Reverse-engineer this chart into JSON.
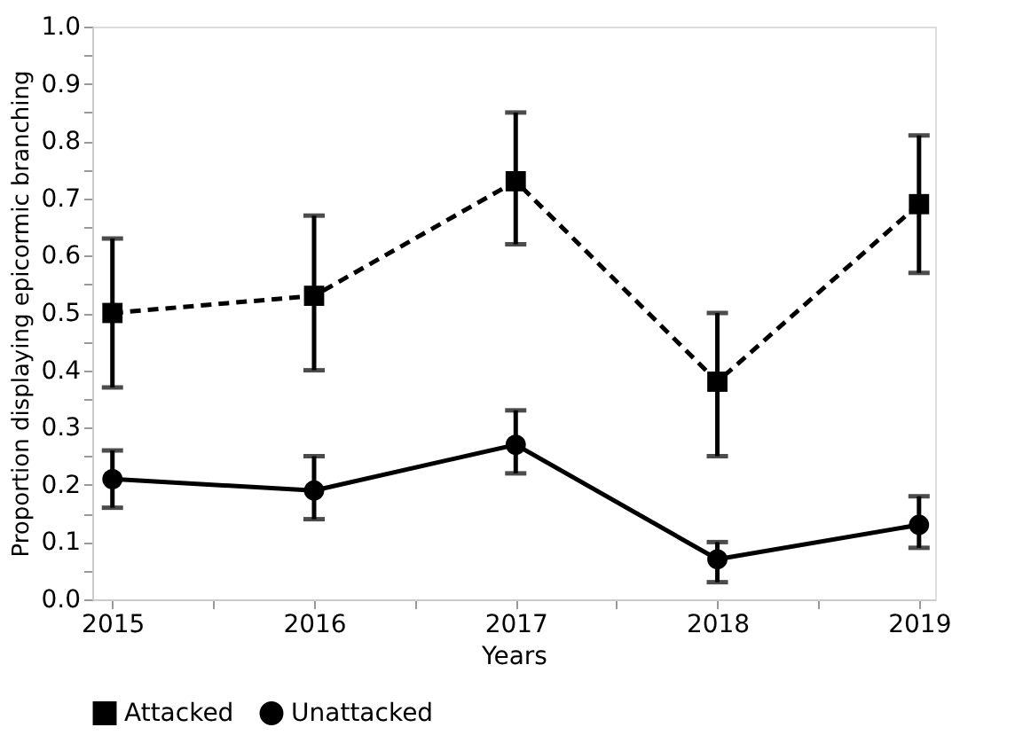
{
  "chart_data": {
    "type": "line",
    "xlabel": "Years",
    "ylabel": "Proportion displaying epicormic branching",
    "x": [
      2015,
      2016,
      2017,
      2018,
      2019
    ],
    "series": [
      {
        "name": "Attacked",
        "color": "#000000",
        "marker": "square",
        "line_style": "dashed",
        "values": [
          0.5,
          0.53,
          0.73,
          0.38,
          0.69
        ],
        "errors": [
          [
            0.37,
            0.63
          ],
          [
            0.4,
            0.67
          ],
          [
            0.62,
            0.85
          ],
          [
            0.25,
            0.5
          ],
          [
            0.57,
            0.81
          ]
        ]
      },
      {
        "name": "Unattacked",
        "color": "#000000",
        "marker": "circle",
        "line_style": "solid",
        "values": [
          0.21,
          0.19,
          0.27,
          0.07,
          0.13
        ],
        "errors": [
          [
            0.16,
            0.26
          ],
          [
            0.14,
            0.25
          ],
          [
            0.22,
            0.33
          ],
          [
            0.03,
            0.1
          ],
          [
            0.09,
            0.18
          ]
        ]
      }
    ],
    "xlim": [
      2014.9,
      2019.08
    ],
    "xticks": [
      2015,
      {
        "value": 2015.5,
        "label": null
      },
      2016,
      {
        "value": 2016.5,
        "label": null
      },
      2017,
      {
        "value": 2017.5,
        "label": null
      },
      2018,
      {
        "value": 2018.5,
        "label": null
      },
      2019
    ],
    "ylim": [
      0,
      1.0
    ],
    "yticks": [
      {
        "value": 0,
        "label": "0.0"
      },
      {
        "value": 0.05,
        "label": null
      },
      0.1,
      {
        "value": 0.15,
        "label": null
      },
      0.2,
      {
        "value": 0.25,
        "label": null
      },
      0.3,
      {
        "value": 0.35,
        "label": null
      },
      0.4,
      {
        "value": 0.45,
        "label": null
      },
      0.5,
      {
        "value": 0.55,
        "label": null
      },
      0.6,
      {
        "value": 0.65,
        "label": null
      },
      0.7,
      {
        "value": 0.75,
        "label": null
      },
      0.8,
      {
        "value": 0.85,
        "label": null
      },
      0.9,
      {
        "value": 0.95,
        "label": null
      },
      {
        "value": 1.0,
        "label": "1.0"
      }
    ],
    "grid": false,
    "legend": "bottom"
  }
}
